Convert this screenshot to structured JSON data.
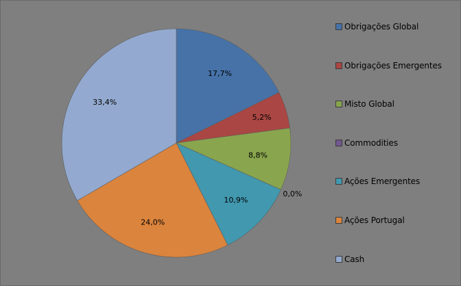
{
  "chart_data": {
    "type": "pie",
    "title": "",
    "categories": [
      "Obrigações Global",
      "Obrigações Emergentes",
      "Misto Global",
      "Commodities",
      "Ações Emergentes",
      "Ações Portugal",
      "Cash"
    ],
    "values": [
      17.7,
      5.2,
      8.8,
      0.0,
      10.9,
      24.0,
      33.4
    ],
    "data_labels": [
      "17,7%",
      "5,2%",
      "8,8%",
      "0,0%",
      "10,9%",
      "24,0%",
      "33,4%"
    ],
    "colors": [
      "#4672a8",
      "#aa4643",
      "#89a54e",
      "#71588f",
      "#4198af",
      "#db843d",
      "#93a9cf"
    ],
    "legend_position": "right",
    "background": "#7f7f7f"
  }
}
